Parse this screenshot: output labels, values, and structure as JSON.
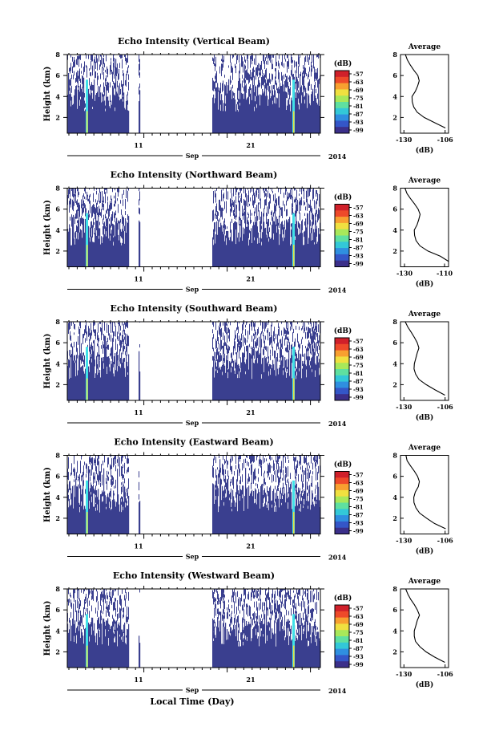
{
  "figure": {
    "xlabel": "Local Time (Day)",
    "month_label": "Sep",
    "year_label": "2014"
  },
  "chart_data": [
    {
      "type": "heatmap",
      "title": "Echo Intensity (Vertical Beam)",
      "ylabel": "Height (km)",
      "x_ticks": [
        "11",
        "21"
      ],
      "y_ticks": [
        "2",
        "4",
        "6",
        "8"
      ],
      "ylim": [
        0.5,
        8
      ],
      "colorbar": {
        "unit": "(dB)",
        "ticks": [
          "-57",
          "-63",
          "-69",
          "-75",
          "-81",
          "-87",
          "-93",
          "-99"
        ]
      },
      "profile": {
        "title": "Average",
        "xlabel": "(dB)",
        "xticks": [
          "-130",
          "-106"
        ],
        "yticks": [
          "2",
          "4",
          "6",
          "8"
        ],
        "height": [
          1.0,
          1.5,
          2.0,
          2.5,
          3.0,
          3.5,
          4.0,
          4.5,
          5.0,
          5.5,
          6.0,
          6.5,
          7.0,
          7.5,
          8.0
        ],
        "db": [
          -106,
          -112,
          -118,
          -122,
          -124,
          -125,
          -125,
          -123,
          -122,
          -121,
          -122,
          -124,
          -126,
          -128,
          -129
        ]
      }
    },
    {
      "type": "heatmap",
      "title": "Echo Intensity (Northward Beam)",
      "ylabel": "Height (km)",
      "x_ticks": [
        "11",
        "21"
      ],
      "y_ticks": [
        "2",
        "4",
        "6",
        "8"
      ],
      "ylim": [
        0.5,
        8
      ],
      "colorbar": {
        "unit": "(dB)",
        "ticks": [
          "-57",
          "-63",
          "-69",
          "-75",
          "-81",
          "-87",
          "-93",
          "-99"
        ]
      },
      "profile": {
        "title": "Average",
        "xlabel": "(dB)",
        "xticks": [
          "-130",
          "-110"
        ],
        "yticks": [
          "2",
          "4",
          "6",
          "8"
        ],
        "height": [
          1.0,
          1.5,
          2.0,
          2.5,
          3.0,
          3.5,
          4.0,
          4.5,
          5.0,
          5.5,
          6.0,
          6.5,
          7.0,
          7.5,
          8.0
        ],
        "db": [
          -108,
          -112,
          -118,
          -122,
          -124,
          -125,
          -125,
          -124,
          -123,
          -122,
          -123,
          -125,
          -127,
          -129,
          -130
        ]
      }
    },
    {
      "type": "heatmap",
      "title": "Echo Intensity (Southward Beam)",
      "ylabel": "Height (km)",
      "x_ticks": [
        "11",
        "21"
      ],
      "y_ticks": [
        "2",
        "4",
        "6",
        "8"
      ],
      "ylim": [
        0.5,
        8
      ],
      "colorbar": {
        "unit": "(dB)",
        "ticks": [
          "-57",
          "-63",
          "-69",
          "-75",
          "-81",
          "-87",
          "-93",
          "-99"
        ]
      },
      "profile": {
        "title": "Average",
        "xlabel": "(dB)",
        "xticks": [
          "-130",
          "-106"
        ],
        "yticks": [
          "2",
          "4",
          "6",
          "8"
        ],
        "height": [
          1.0,
          1.5,
          2.0,
          2.5,
          3.0,
          3.5,
          4.0,
          4.5,
          5.0,
          5.5,
          6.0,
          6.5,
          7.0,
          7.5,
          8.0
        ],
        "db": [
          -106,
          -112,
          -117,
          -121,
          -123,
          -124,
          -124,
          -123,
          -122,
          -121,
          -122,
          -124,
          -126,
          -128,
          -129
        ]
      }
    },
    {
      "type": "heatmap",
      "title": "Echo Intensity (Eastward Beam)",
      "ylabel": "Height (km)",
      "x_ticks": [
        "11",
        "21"
      ],
      "y_ticks": [
        "2",
        "4",
        "6",
        "8"
      ],
      "ylim": [
        0.5,
        8
      ],
      "colorbar": {
        "unit": "(dB)",
        "ticks": [
          "-57",
          "-63",
          "-69",
          "-75",
          "-81",
          "-87",
          "-93",
          "-99"
        ]
      },
      "profile": {
        "title": "Average",
        "xlabel": "(dB)",
        "xticks": [
          "-130",
          "-106"
        ],
        "yticks": [
          "2",
          "4",
          "6",
          "8"
        ],
        "height": [
          1.0,
          1.5,
          2.0,
          2.5,
          3.0,
          3.5,
          4.0,
          4.5,
          5.0,
          5.5,
          6.0,
          6.5,
          7.0,
          7.5,
          8.0
        ],
        "db": [
          -106,
          -112,
          -117,
          -121,
          -123,
          -124,
          -124,
          -123,
          -122,
          -121,
          -122,
          -124,
          -126,
          -128,
          -129
        ]
      }
    },
    {
      "type": "heatmap",
      "title": "Echo Intensity (Westward Beam)",
      "ylabel": "Height (km)",
      "x_ticks": [
        "11",
        "21"
      ],
      "y_ticks": [
        "2",
        "4",
        "6",
        "8"
      ],
      "ylim": [
        0.5,
        8
      ],
      "colorbar": {
        "unit": "(dB)",
        "ticks": [
          "-57",
          "-63",
          "-69",
          "-75",
          "-81",
          "-87",
          "-93",
          "-99"
        ]
      },
      "profile": {
        "title": "Average",
        "xlabel": "(dB)",
        "xticks": [
          "-130",
          "-106"
        ],
        "yticks": [
          "2",
          "4",
          "6",
          "8"
        ],
        "height": [
          1.0,
          1.5,
          2.0,
          2.5,
          3.0,
          3.5,
          4.0,
          4.5,
          5.0,
          5.5,
          6.0,
          6.5,
          7.0,
          7.5,
          8.0
        ],
        "db": [
          -106,
          -112,
          -117,
          -121,
          -123,
          -124,
          -124,
          -123,
          -122,
          -121,
          -122,
          -124,
          -126,
          -128,
          -129
        ]
      }
    }
  ],
  "colors": {
    "background": "#3a3f8f",
    "spike_cyan": "#40e0e8",
    "spike_yellow": "#e8e040",
    "colorbar": [
      "#3b2f8a",
      "#3456c8",
      "#2f8fe0",
      "#33c8d8",
      "#5fe0a0",
      "#a8e85a",
      "#f0e040",
      "#f8a030",
      "#ee4a2a",
      "#d0202a"
    ]
  }
}
